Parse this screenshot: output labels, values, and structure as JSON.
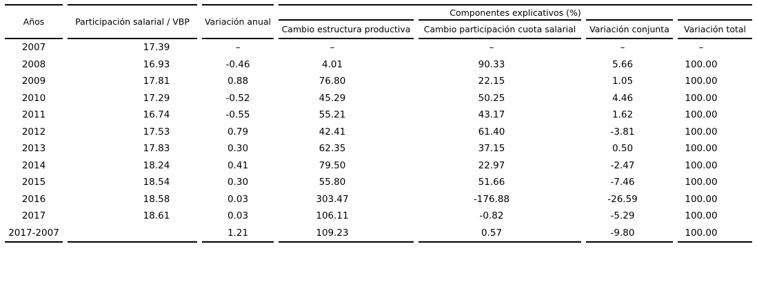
{
  "colors": {
    "background": "#ffffff",
    "text": "#000000",
    "rule": "#000000"
  },
  "table": {
    "header": {
      "anios": "Años",
      "participacion_vbp": "Participación salarial / VBP",
      "variacion_anual": "Variación anual",
      "componentes_explicativos": "Componentes explicativos (%)",
      "subheaders": [
        "Cambio estructura productiva",
        "Cambio participación cuota salarial",
        "Variación conjunta",
        "Variación total"
      ]
    },
    "rows": [
      [
        "2007",
        "17.39",
        "–",
        "–",
        "–",
        "–",
        "–"
      ],
      [
        "2008",
        "16.93",
        "-0.46",
        "4.01",
        "90.33",
        "5.66",
        "100.00"
      ],
      [
        "2009",
        "17.81",
        "0.88",
        "76.80",
        "22.15",
        "1.05",
        "100.00"
      ],
      [
        "2010",
        "17.29",
        "-0.52",
        "45.29",
        "50.25",
        "4.46",
        "100.00"
      ],
      [
        "2011",
        "16.74",
        "-0.55",
        "55.21",
        "43.17",
        "1.62",
        "100.00"
      ],
      [
        "2012",
        "17.53",
        "0.79",
        "42.41",
        "61.40",
        "-3.81",
        "100.00"
      ],
      [
        "2013",
        "17.83",
        "0.30",
        "62.35",
        "37.15",
        "0.50",
        "100.00"
      ],
      [
        "2014",
        "18.24",
        "0.41",
        "79.50",
        "22.97",
        "-2.47",
        "100.00"
      ],
      [
        "2015",
        "18.54",
        "0.30",
        "55.80",
        "51.66",
        "-7.46",
        "100.00"
      ],
      [
        "2016",
        "18.58",
        "0.03",
        "303.47",
        "-176.88",
        "-26.59",
        "100.00"
      ],
      [
        "2017",
        "18.61",
        "0.03",
        "106.11",
        "-0.82",
        "-5.29",
        "100.00"
      ],
      [
        "2017-2007",
        "",
        "1.21",
        "109.23",
        "0.57",
        "-9.80",
        "100.00"
      ]
    ]
  },
  "chart_data": {
    "type": "table",
    "columns": [
      "Años",
      "Participación salarial / VBP",
      "Variación anual",
      "Cambio estructura productiva (%)",
      "Cambio participación cuota salarial (%)",
      "Variación conjunta (%)",
      "Variación total (%)"
    ],
    "rows": [
      [
        "2007",
        17.39,
        null,
        null,
        null,
        null,
        null
      ],
      [
        "2008",
        16.93,
        -0.46,
        4.01,
        90.33,
        5.66,
        100.0
      ],
      [
        "2009",
        17.81,
        0.88,
        76.8,
        22.15,
        1.05,
        100.0
      ],
      [
        "2010",
        17.29,
        -0.52,
        45.29,
        50.25,
        4.46,
        100.0
      ],
      [
        "2011",
        16.74,
        -0.55,
        55.21,
        43.17,
        1.62,
        100.0
      ],
      [
        "2012",
        17.53,
        0.79,
        42.41,
        61.4,
        -3.81,
        100.0
      ],
      [
        "2013",
        17.83,
        0.3,
        62.35,
        37.15,
        0.5,
        100.0
      ],
      [
        "2014",
        18.24,
        0.41,
        79.5,
        22.97,
        -2.47,
        100.0
      ],
      [
        "2015",
        18.54,
        0.3,
        55.8,
        51.66,
        -7.46,
        100.0
      ],
      [
        "2016",
        18.58,
        0.03,
        303.47,
        -176.88,
        -26.59,
        100.0
      ],
      [
        "2017",
        18.61,
        0.03,
        106.11,
        -0.82,
        -5.29,
        100.0
      ],
      [
        "2017-2007",
        null,
        1.21,
        109.23,
        0.57,
        -9.8,
        100.0
      ]
    ]
  }
}
